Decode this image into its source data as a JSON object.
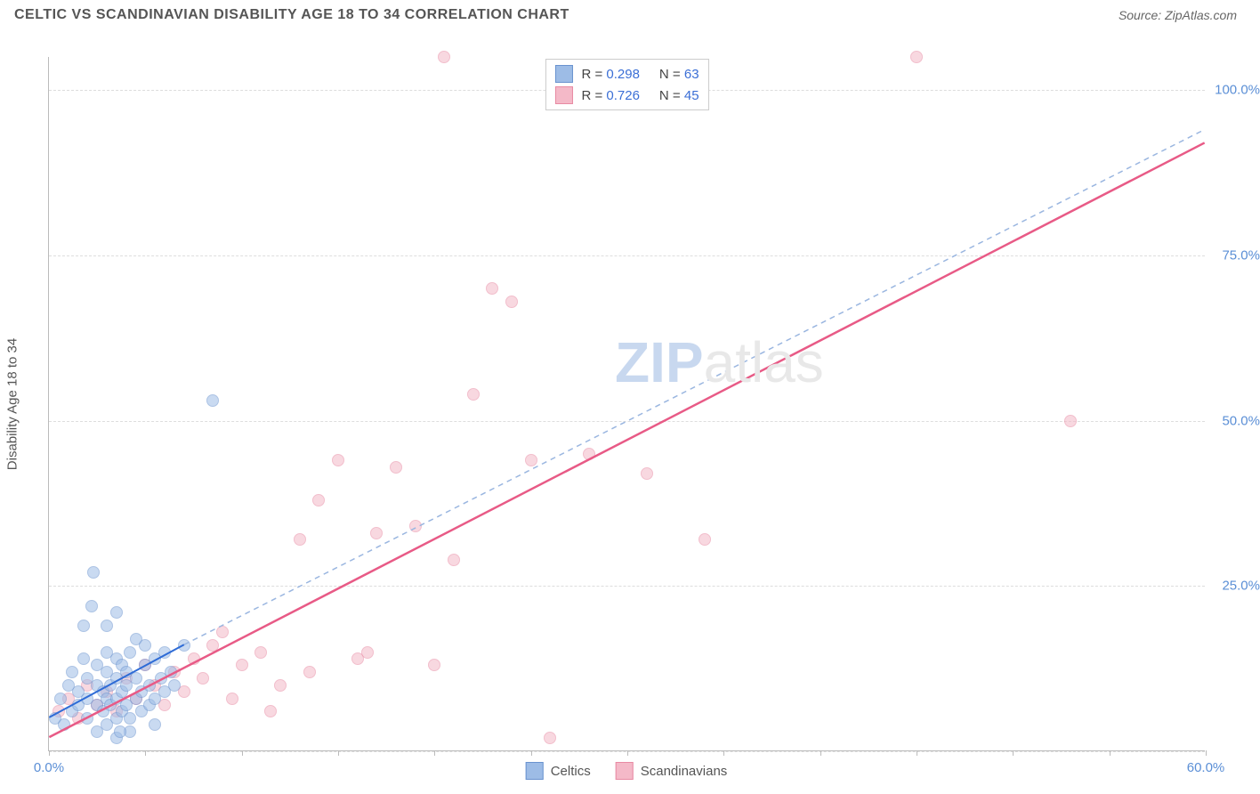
{
  "header": {
    "title": "CELTIC VS SCANDINAVIAN DISABILITY AGE 18 TO 34 CORRELATION CHART",
    "source_prefix": "Source: ",
    "source": "ZipAtlas.com"
  },
  "chart": {
    "type": "scatter",
    "y_axis_label": "Disability Age 18 to 34",
    "xlim": [
      0,
      60
    ],
    "ylim": [
      0,
      105
    ],
    "x_ticks": [
      0,
      5,
      10,
      15,
      20,
      25,
      30,
      35,
      40,
      45,
      50,
      55,
      60
    ],
    "x_tick_labels": {
      "0": "0.0%",
      "60": "60.0%"
    },
    "y_gridlines": [
      0,
      25,
      50,
      75,
      100
    ],
    "y_tick_labels": {
      "25": "25.0%",
      "50": "50.0%",
      "75": "75.0%",
      "100": "100.0%"
    },
    "background_color": "#ffffff",
    "grid_color": "#dddddd",
    "axis_color": "#bbbbbb",
    "marker_radius": 7,
    "marker_opacity": 0.55,
    "series": [
      {
        "name": "Celtics",
        "fill": "#9dbce6",
        "stroke": "#6a93cf",
        "r_label": "R = ",
        "r_value": "0.298",
        "n_label": "N = ",
        "n_value": "63",
        "trend": {
          "x1": 0,
          "y1": 5,
          "x2": 7,
          "y2": 16,
          "dashed": false,
          "color": "#2e6bd6",
          "width": 2
        },
        "trend_ext": {
          "x1": 7,
          "y1": 16,
          "x2": 60,
          "y2": 94,
          "dashed": true,
          "color": "#9ab6e0",
          "width": 1.5
        },
        "points": [
          [
            0.3,
            5
          ],
          [
            0.6,
            8
          ],
          [
            0.8,
            4
          ],
          [
            1.0,
            10
          ],
          [
            1.2,
            6
          ],
          [
            1.2,
            12
          ],
          [
            1.5,
            7
          ],
          [
            1.5,
            9
          ],
          [
            1.8,
            14
          ],
          [
            1.8,
            19
          ],
          [
            2.0,
            5
          ],
          [
            2.0,
            8
          ],
          [
            2.0,
            11
          ],
          [
            2.2,
            22
          ],
          [
            2.3,
            27
          ],
          [
            2.5,
            3
          ],
          [
            2.5,
            7
          ],
          [
            2.5,
            10
          ],
          [
            2.5,
            13
          ],
          [
            2.8,
            6
          ],
          [
            2.8,
            9
          ],
          [
            3.0,
            4
          ],
          [
            3.0,
            8
          ],
          [
            3.0,
            12
          ],
          [
            3.0,
            15
          ],
          [
            3.0,
            19
          ],
          [
            3.2,
            7
          ],
          [
            3.2,
            10
          ],
          [
            3.5,
            2
          ],
          [
            3.5,
            5
          ],
          [
            3.5,
            8
          ],
          [
            3.5,
            11
          ],
          [
            3.5,
            14
          ],
          [
            3.5,
            21
          ],
          [
            3.8,
            6
          ],
          [
            3.8,
            9
          ],
          [
            3.8,
            13
          ],
          [
            4.0,
            7
          ],
          [
            4.0,
            10
          ],
          [
            4.0,
            12
          ],
          [
            4.2,
            3
          ],
          [
            4.2,
            5
          ],
          [
            4.2,
            15
          ],
          [
            4.5,
            8
          ],
          [
            4.5,
            11
          ],
          [
            4.5,
            17
          ],
          [
            4.8,
            6
          ],
          [
            4.8,
            9
          ],
          [
            5.0,
            13
          ],
          [
            5.0,
            16
          ],
          [
            5.2,
            7
          ],
          [
            5.2,
            10
          ],
          [
            5.5,
            4
          ],
          [
            5.5,
            8
          ],
          [
            5.5,
            14
          ],
          [
            5.8,
            11
          ],
          [
            6.0,
            9
          ],
          [
            6.0,
            15
          ],
          [
            6.3,
            12
          ],
          [
            6.5,
            10
          ],
          [
            7.0,
            16
          ],
          [
            8.5,
            53
          ],
          [
            3.7,
            3
          ]
        ]
      },
      {
        "name": "Scandinavians",
        "fill": "#f4b9c8",
        "stroke": "#e88aa3",
        "r_label": "R = ",
        "r_value": "0.726",
        "n_label": "N = ",
        "n_value": "45",
        "trend": {
          "x1": 0,
          "y1": 2,
          "x2": 60,
          "y2": 92,
          "dashed": false,
          "color": "#e85a86",
          "width": 2.5
        },
        "points": [
          [
            0.5,
            6
          ],
          [
            1.0,
            8
          ],
          [
            1.5,
            5
          ],
          [
            2.0,
            10
          ],
          [
            2.5,
            7
          ],
          [
            3.0,
            9
          ],
          [
            3.5,
            6
          ],
          [
            4.0,
            11
          ],
          [
            4.5,
            8
          ],
          [
            5.0,
            13
          ],
          [
            5.5,
            10
          ],
          [
            6.0,
            7
          ],
          [
            6.5,
            12
          ],
          [
            7.0,
            9
          ],
          [
            7.5,
            14
          ],
          [
            8.0,
            11
          ],
          [
            8.5,
            16
          ],
          [
            9.0,
            18
          ],
          [
            9.5,
            8
          ],
          [
            10.0,
            13
          ],
          [
            11.0,
            15
          ],
          [
            11.5,
            6
          ],
          [
            12.0,
            10
          ],
          [
            13.0,
            32
          ],
          [
            13.5,
            12
          ],
          [
            14.0,
            38
          ],
          [
            15.0,
            44
          ],
          [
            16.0,
            14
          ],
          [
            17.0,
            33
          ],
          [
            18.0,
            43
          ],
          [
            19.0,
            34
          ],
          [
            20.0,
            13
          ],
          [
            20.5,
            105
          ],
          [
            21.0,
            29
          ],
          [
            22.0,
            54
          ],
          [
            23.0,
            70
          ],
          [
            24.0,
            68
          ],
          [
            25.0,
            44
          ],
          [
            26.0,
            2
          ],
          [
            28.0,
            45
          ],
          [
            31.0,
            42
          ],
          [
            34.0,
            32
          ],
          [
            45.0,
            105
          ],
          [
            53.0,
            50
          ],
          [
            16.5,
            15
          ]
        ]
      }
    ],
    "legend_bottom": [
      {
        "label": "Celtics",
        "fill": "#9dbce6",
        "stroke": "#6a93cf"
      },
      {
        "label": "Scandinavians",
        "fill": "#f4b9c8",
        "stroke": "#e88aa3"
      }
    ],
    "watermark": {
      "part1": "ZIP",
      "part2": "atlas"
    }
  }
}
